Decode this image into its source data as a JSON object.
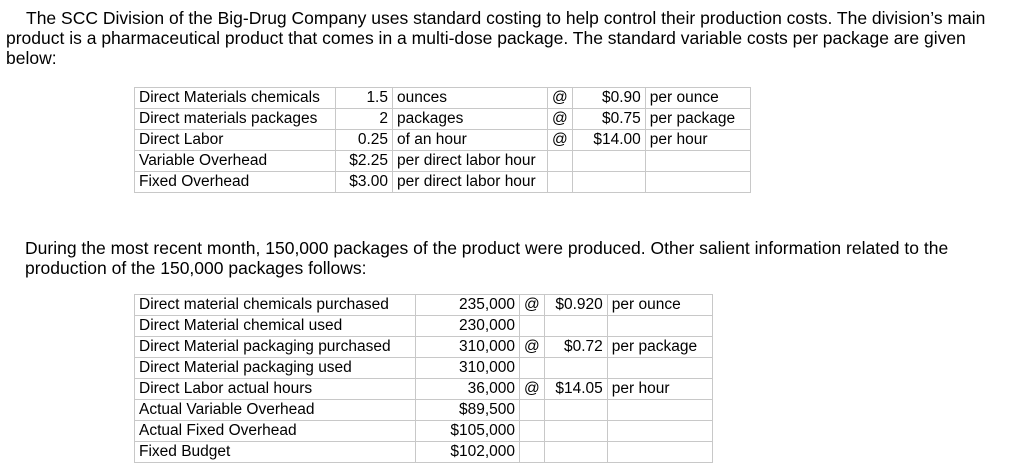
{
  "intro": "The SCC Division of the Big-Drug Company uses standard costing to help control their production costs.  The division’s main product is a pharmaceutical product that comes in a multi-dose package.  The standard variable costs per package are given below:",
  "standards": [
    {
      "item": "Direct Materials chemicals",
      "qty": "1.5",
      "unit": "ounces",
      "at": "@",
      "price": "$0.90",
      "per": "per ounce"
    },
    {
      "item": "Direct materials packages",
      "qty": "2",
      "unit": "packages",
      "at": "@",
      "price": "$0.75",
      "per": "per package"
    },
    {
      "item": "Direct Labor",
      "qty": "0.25",
      "unit": "of an hour",
      "at": "@",
      "price": "$14.00",
      "per": "per hour"
    },
    {
      "item": "Variable Overhead",
      "qty": "$2.25",
      "unit": "per direct labor hour",
      "at": "",
      "price": "",
      "per": ""
    },
    {
      "item": "Fixed Overhead",
      "qty": "$3.00",
      "unit": "per direct labor hour",
      "at": "",
      "price": "",
      "per": ""
    }
  ],
  "middle": "During the most recent month, 150,000 packages of the product were produced.  Other salient information related to the production of the 150,000 packages follows:",
  "actuals": [
    {
      "item": "Direct material chemicals purchased",
      "amount": "235,000",
      "at": "@",
      "price": "$0.920",
      "per": "per ounce"
    },
    {
      "item": "Direct Material chemical used",
      "amount": "230,000",
      "at": "",
      "price": "",
      "per": ""
    },
    {
      "item": "Direct Material packaging purchased",
      "amount": "310,000",
      "at": "@",
      "price": "$0.72",
      "per": "per package"
    },
    {
      "item": "Direct Material packaging used",
      "amount": "310,000",
      "at": "",
      "price": "",
      "per": ""
    },
    {
      "item": "Direct Labor actual hours",
      "amount": "36,000",
      "at": "@",
      "price": "$14.05",
      "per": "per hour"
    },
    {
      "item": "Actual Variable Overhead",
      "amount": "$89,500",
      "at": "",
      "price": "",
      "per": ""
    },
    {
      "item": "Actual Fixed Overhead",
      "amount": "$105,000",
      "at": "",
      "price": "",
      "per": ""
    },
    {
      "item": "Fixed Budget",
      "amount": "$102,000",
      "at": "",
      "price": "",
      "per": ""
    }
  ]
}
